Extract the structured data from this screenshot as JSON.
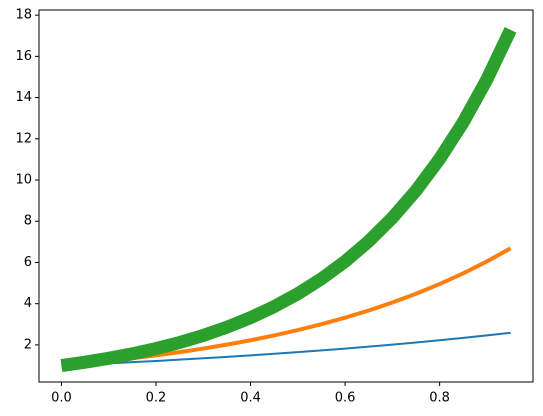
{
  "chart_data": {
    "type": "line",
    "x": [
      0,
      0.05,
      0.1,
      0.15,
      0.2,
      0.25,
      0.3,
      0.35,
      0.4,
      0.45,
      0.5,
      0.55,
      0.6,
      0.65,
      0.7,
      0.75,
      0.8,
      0.85,
      0.9,
      0.95
    ],
    "series": [
      {
        "color": "#1f77b4",
        "linewidth": 2,
        "values": [
          1,
          1.051,
          1.105,
          1.162,
          1.221,
          1.284,
          1.35,
          1.419,
          1.492,
          1.568,
          1.649,
          1.733,
          1.822,
          1.916,
          2.014,
          2.117,
          2.226,
          2.34,
          2.46,
          2.586
        ]
      },
      {
        "color": "#ff7f0e",
        "linewidth": 4,
        "values": [
          1,
          1.105,
          1.221,
          1.35,
          1.492,
          1.649,
          1.822,
          2.014,
          2.226,
          2.46,
          2.718,
          3.004,
          3.32,
          3.669,
          4.055,
          4.482,
          4.953,
          5.474,
          6.05,
          6.686
        ]
      },
      {
        "color": "#2ca02c",
        "linewidth": 13,
        "values": [
          1,
          1.162,
          1.35,
          1.568,
          1.822,
          2.117,
          2.46,
          2.858,
          3.32,
          3.857,
          4.482,
          5.207,
          6.05,
          7.029,
          8.166,
          9.488,
          11.023,
          12.807,
          14.88,
          17.288
        ]
      }
    ],
    "xlim": [
      -0.0475,
      0.9975
    ],
    "xticks": [
      {
        "value": 0,
        "label": "0.0"
      },
      0.2,
      0.4,
      0.6,
      0.8
    ],
    "ylim": [
      0.2,
      18.25
    ],
    "yticks": [
      2,
      4,
      6,
      8,
      10,
      12,
      14,
      16,
      18
    ]
  }
}
